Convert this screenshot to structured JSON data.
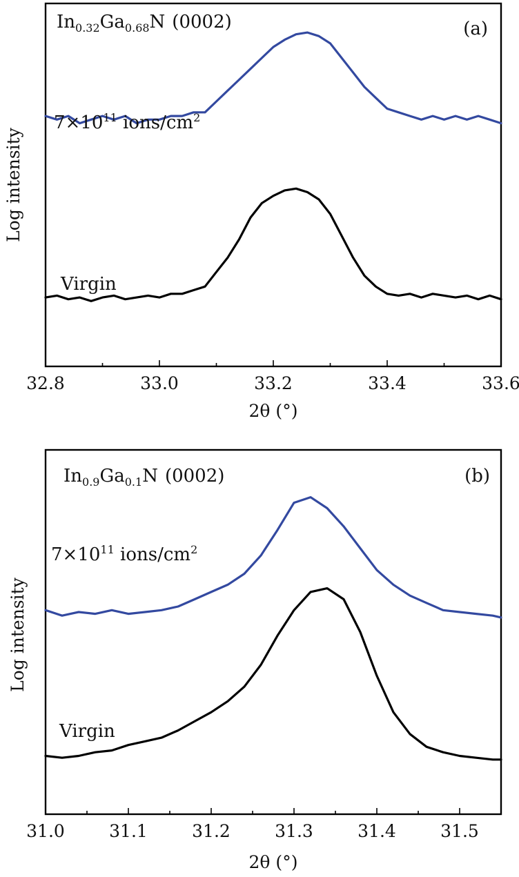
{
  "chart_data": [
    {
      "type": "line",
      "panel_label": "(a)",
      "sample": {
        "el1": "In",
        "sub1": "0.32",
        "el2": "Ga",
        "sub2": "0.68",
        "el3": "N",
        "reflection": "(0002)"
      },
      "xlabel": "2θ (°)",
      "ylabel": "Log intensity",
      "xlim": [
        32.8,
        33.6
      ],
      "xticks": [
        32.8,
        33.0,
        33.2,
        33.4,
        33.6
      ],
      "xtick_labels": [
        "32.8",
        "33.0",
        "33.2",
        "33.4",
        "33.6"
      ],
      "minor_xticks": [
        32.9,
        33.1,
        33.3,
        33.5
      ],
      "ylim": [
        0,
        10
      ],
      "y_scale": "log (arbitrary, no tick labels)",
      "grid": false,
      "series": [
        {
          "name": "7×10¹¹ ions/cm²",
          "label_parts": {
            "pre": "7×10",
            "sup1": "11",
            "mid": " ions/cm",
            "sup2": "2"
          },
          "color": "#3349a0",
          "x": [
            32.8,
            32.82,
            32.84,
            32.86,
            32.88,
            32.9,
            32.92,
            32.94,
            32.96,
            32.98,
            33.0,
            33.02,
            33.04,
            33.06,
            33.08,
            33.1,
            33.12,
            33.14,
            33.16,
            33.18,
            33.2,
            33.22,
            33.24,
            33.26,
            33.28,
            33.3,
            33.32,
            33.34,
            33.36,
            33.38,
            33.4,
            33.42,
            33.44,
            33.46,
            33.48,
            33.5,
            33.52,
            33.54,
            33.56,
            33.58,
            33.6
          ],
          "y": [
            6.9,
            6.8,
            6.9,
            6.7,
            6.8,
            6.9,
            6.8,
            6.9,
            6.7,
            6.8,
            6.8,
            6.9,
            6.9,
            7.0,
            7.0,
            7.3,
            7.6,
            7.9,
            8.2,
            8.5,
            8.8,
            9.0,
            9.15,
            9.2,
            9.1,
            8.9,
            8.5,
            8.1,
            7.7,
            7.4,
            7.1,
            7.0,
            6.9,
            6.8,
            6.9,
            6.8,
            6.9,
            6.8,
            6.9,
            6.8,
            6.7
          ]
        },
        {
          "name": "Virgin",
          "label_parts": {
            "pre": "Virgin",
            "sup1": "",
            "mid": "",
            "sup2": ""
          },
          "color": "#000000",
          "x": [
            32.8,
            32.82,
            32.84,
            32.86,
            32.88,
            32.9,
            32.92,
            32.94,
            32.96,
            32.98,
            33.0,
            33.02,
            33.04,
            33.06,
            33.08,
            33.1,
            33.12,
            33.14,
            33.16,
            33.18,
            33.2,
            33.22,
            33.24,
            33.26,
            33.28,
            33.3,
            33.32,
            33.34,
            33.36,
            33.38,
            33.4,
            33.42,
            33.44,
            33.46,
            33.48,
            33.5,
            33.52,
            33.54,
            33.56,
            33.58,
            33.6
          ],
          "y": [
            1.9,
            1.95,
            1.85,
            1.9,
            1.8,
            1.9,
            1.95,
            1.85,
            1.9,
            1.95,
            1.9,
            2.0,
            2.0,
            2.1,
            2.2,
            2.6,
            3.0,
            3.5,
            4.1,
            4.5,
            4.7,
            4.85,
            4.9,
            4.8,
            4.6,
            4.2,
            3.6,
            3.0,
            2.5,
            2.2,
            2.0,
            1.95,
            2.0,
            1.9,
            2.0,
            1.95,
            1.9,
            1.95,
            1.85,
            1.95,
            1.85
          ]
        }
      ]
    },
    {
      "type": "line",
      "panel_label": "(b)",
      "sample": {
        "el1": "In",
        "sub1": "0.9",
        "el2": "Ga",
        "sub2": "0.1",
        "el3": "N",
        "reflection": "(0002)"
      },
      "xlabel": "2θ (°)",
      "ylabel": "Log intensity",
      "xlim": [
        31.0,
        31.55
      ],
      "xticks": [
        31.0,
        31.1,
        31.2,
        31.3,
        31.4,
        31.5
      ],
      "xtick_labels": [
        "31.0",
        "31.1",
        "31.2",
        "31.3",
        "31.4",
        "31.5"
      ],
      "minor_xticks": [
        31.05,
        31.15,
        31.25,
        31.35,
        31.45
      ],
      "ylim": [
        0,
        10
      ],
      "y_scale": "log (arbitrary, no tick labels)",
      "grid": false,
      "series": [
        {
          "name": "7×10¹¹ ions/cm²",
          "label_parts": {
            "pre": "7×10",
            "sup1": "11",
            "mid": " ions/cm",
            "sup2": "2"
          },
          "color": "#3349a0",
          "x": [
            31.0,
            31.02,
            31.04,
            31.06,
            31.08,
            31.1,
            31.12,
            31.14,
            31.16,
            31.18,
            31.2,
            31.22,
            31.24,
            31.26,
            31.28,
            31.3,
            31.32,
            31.34,
            31.36,
            31.38,
            31.4,
            31.42,
            31.44,
            31.46,
            31.48,
            31.5,
            31.52,
            31.54,
            31.55
          ],
          "y": [
            5.6,
            5.45,
            5.55,
            5.5,
            5.6,
            5.5,
            5.55,
            5.6,
            5.7,
            5.9,
            6.1,
            6.3,
            6.6,
            7.1,
            7.8,
            8.55,
            8.7,
            8.4,
            7.9,
            7.3,
            6.7,
            6.3,
            6.0,
            5.8,
            5.6,
            5.55,
            5.5,
            5.45,
            5.4
          ]
        },
        {
          "name": "Virgin",
          "label_parts": {
            "pre": "Virgin",
            "sup1": "",
            "mid": "",
            "sup2": ""
          },
          "color": "#000000",
          "x": [
            31.0,
            31.02,
            31.04,
            31.06,
            31.08,
            31.1,
            31.12,
            31.14,
            31.16,
            31.18,
            31.2,
            31.22,
            31.24,
            31.26,
            31.28,
            31.3,
            31.32,
            31.34,
            31.36,
            31.38,
            31.4,
            31.42,
            31.44,
            31.46,
            31.48,
            31.5,
            31.52,
            31.54,
            31.55
          ],
          "y": [
            1.6,
            1.55,
            1.6,
            1.7,
            1.75,
            1.9,
            2.0,
            2.1,
            2.3,
            2.55,
            2.8,
            3.1,
            3.5,
            4.1,
            4.9,
            5.6,
            6.1,
            6.2,
            5.9,
            5.0,
            3.8,
            2.8,
            2.2,
            1.85,
            1.7,
            1.6,
            1.55,
            1.5,
            1.5
          ]
        }
      ]
    }
  ]
}
